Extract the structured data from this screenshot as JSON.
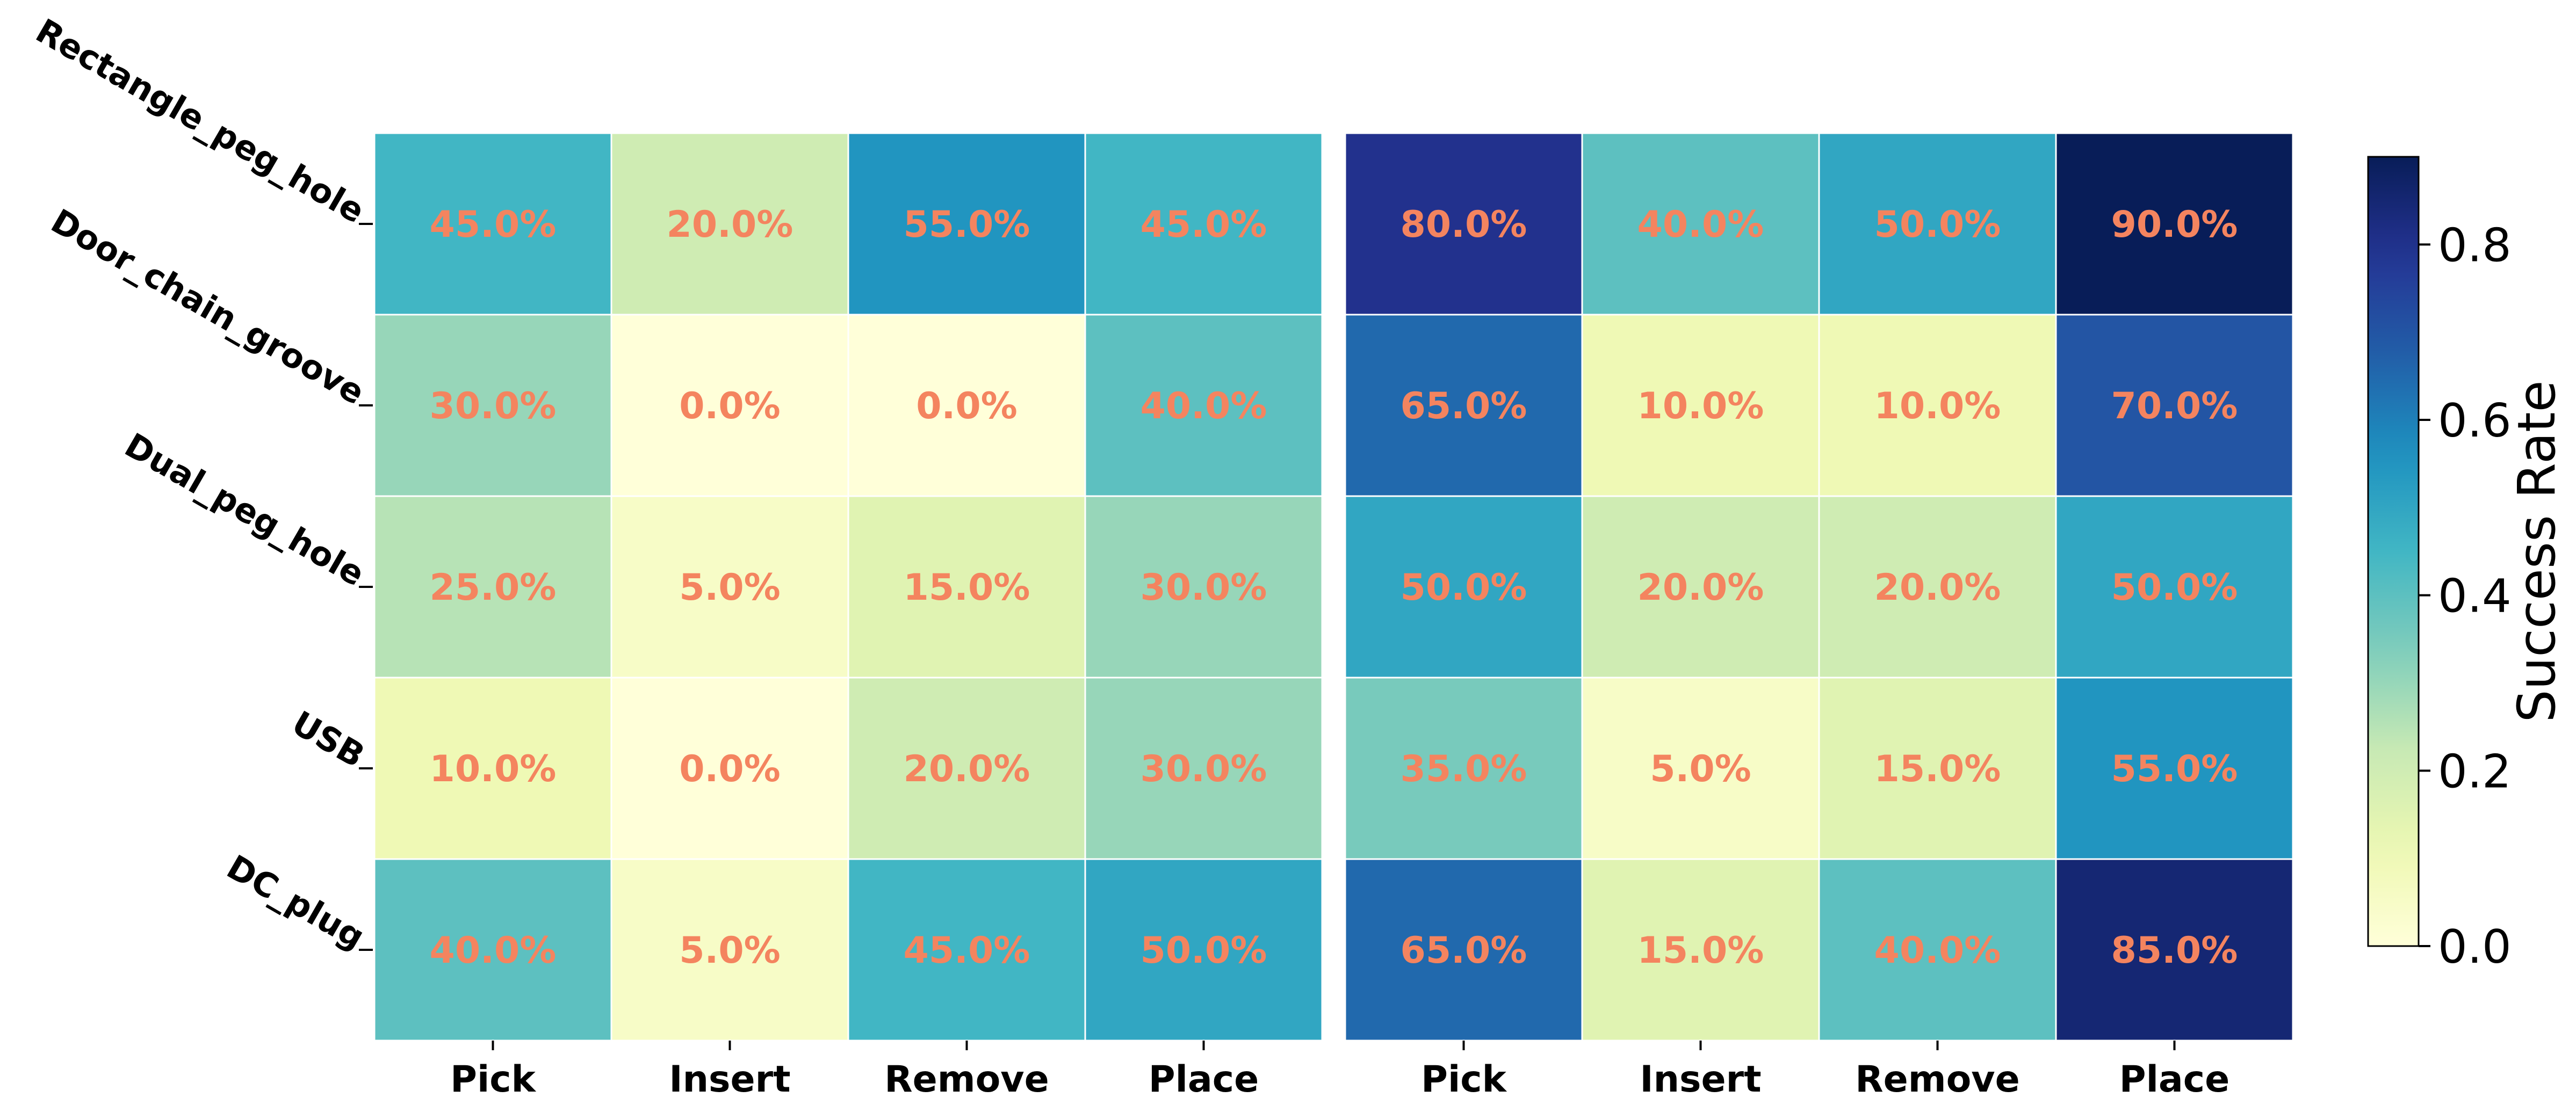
{
  "chart_data": {
    "type": "heatmap",
    "rows": [
      "Rectangle_peg_hole",
      "Door_chain_groove",
      "Dual_peg_hole",
      "USB",
      "DC_plug"
    ],
    "panels": [
      {
        "columns": [
          "Pick",
          "Insert",
          "Remove",
          "Place"
        ],
        "values": [
          [
            0.45,
            0.2,
            0.55,
            0.45
          ],
          [
            0.3,
            0.0,
            0.0,
            0.4
          ],
          [
            0.25,
            0.05,
            0.15,
            0.3
          ],
          [
            0.1,
            0.0,
            0.2,
            0.3
          ],
          [
            0.4,
            0.05,
            0.45,
            0.5
          ]
        ]
      },
      {
        "columns": [
          "Pick",
          "Insert",
          "Remove",
          "Place"
        ],
        "values": [
          [
            0.8,
            0.4,
            0.5,
            0.9
          ],
          [
            0.65,
            0.1,
            0.1,
            0.7
          ],
          [
            0.5,
            0.2,
            0.2,
            0.5
          ],
          [
            0.35,
            0.05,
            0.15,
            0.55
          ],
          [
            0.65,
            0.15,
            0.4,
            0.85
          ]
        ]
      }
    ],
    "cell_labels_format": "percent_one_decimal",
    "colorbar": {
      "label": "Success Rate",
      "range": [
        0.0,
        0.9
      ],
      "ticks": [
        "0.0",
        "0.2",
        "0.4",
        "0.6",
        "0.8"
      ],
      "colormap": "YlGnBu"
    },
    "annotation_color": "#f4845f",
    "cell_border_color": "#ffffff"
  }
}
